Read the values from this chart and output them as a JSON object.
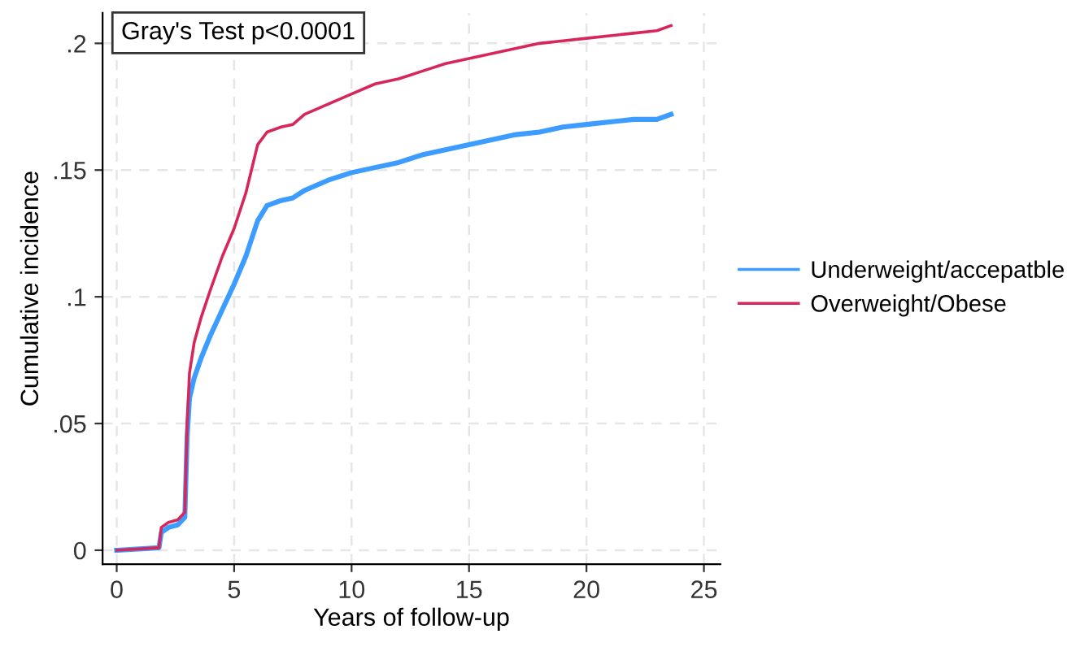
{
  "chart_data": {
    "type": "line",
    "xlabel": "Years of follow-up",
    "ylabel": "Cumulative incidence",
    "annotations": [
      "Gray's Test p<0.0001"
    ],
    "xlim": [
      -0.6,
      25.7
    ],
    "xticks": [
      0,
      5,
      10,
      15,
      20,
      25
    ],
    "ylim": [
      -0.0055,
      0.212
    ],
    "yticks": [
      0,
      {
        "value": 0.05,
        "label": ".05"
      },
      {
        "value": 0.1,
        "label": ".1"
      },
      {
        "value": 0.15,
        "label": ".15"
      },
      {
        "value": 0.2,
        "label": ".2"
      }
    ],
    "grid": true,
    "legend": "right",
    "line_style": "solid",
    "marker": "none",
    "x": [
      0,
      1.8,
      1.9,
      2.2,
      2.6,
      2.9,
      3.0,
      3.1,
      3.3,
      3.6,
      4,
      4.5,
      5,
      5.5,
      6,
      6.4,
      7,
      7.5,
      8,
      9,
      10,
      11,
      12,
      13,
      14,
      15,
      16,
      17,
      18,
      19,
      20,
      21,
      22,
      23,
      23.6
    ],
    "series": [
      {
        "name": "Underweight/accepatble",
        "color": "#3c9cff",
        "values": [
          0,
          0.001,
          0.007,
          0.009,
          0.01,
          0.013,
          0.045,
          0.06,
          0.068,
          0.076,
          0.085,
          0.095,
          0.105,
          0.116,
          0.13,
          0.136,
          0.138,
          0.139,
          0.142,
          0.146,
          0.149,
          0.151,
          0.153,
          0.156,
          0.158,
          0.16,
          0.162,
          0.164,
          0.165,
          0.167,
          0.168,
          0.169,
          0.17,
          0.17,
          0.172
        ]
      },
      {
        "name": "Overweight/Obese",
        "color": "#d6265a",
        "values": [
          0,
          0.001,
          0.009,
          0.011,
          0.012,
          0.015,
          0.05,
          0.07,
          0.082,
          0.092,
          0.103,
          0.116,
          0.127,
          0.141,
          0.16,
          0.165,
          0.167,
          0.168,
          0.172,
          0.176,
          0.18,
          0.184,
          0.186,
          0.189,
          0.192,
          0.194,
          0.196,
          0.198,
          0.2,
          0.201,
          0.202,
          0.203,
          0.204,
          0.205,
          0.207
        ]
      }
    ]
  }
}
